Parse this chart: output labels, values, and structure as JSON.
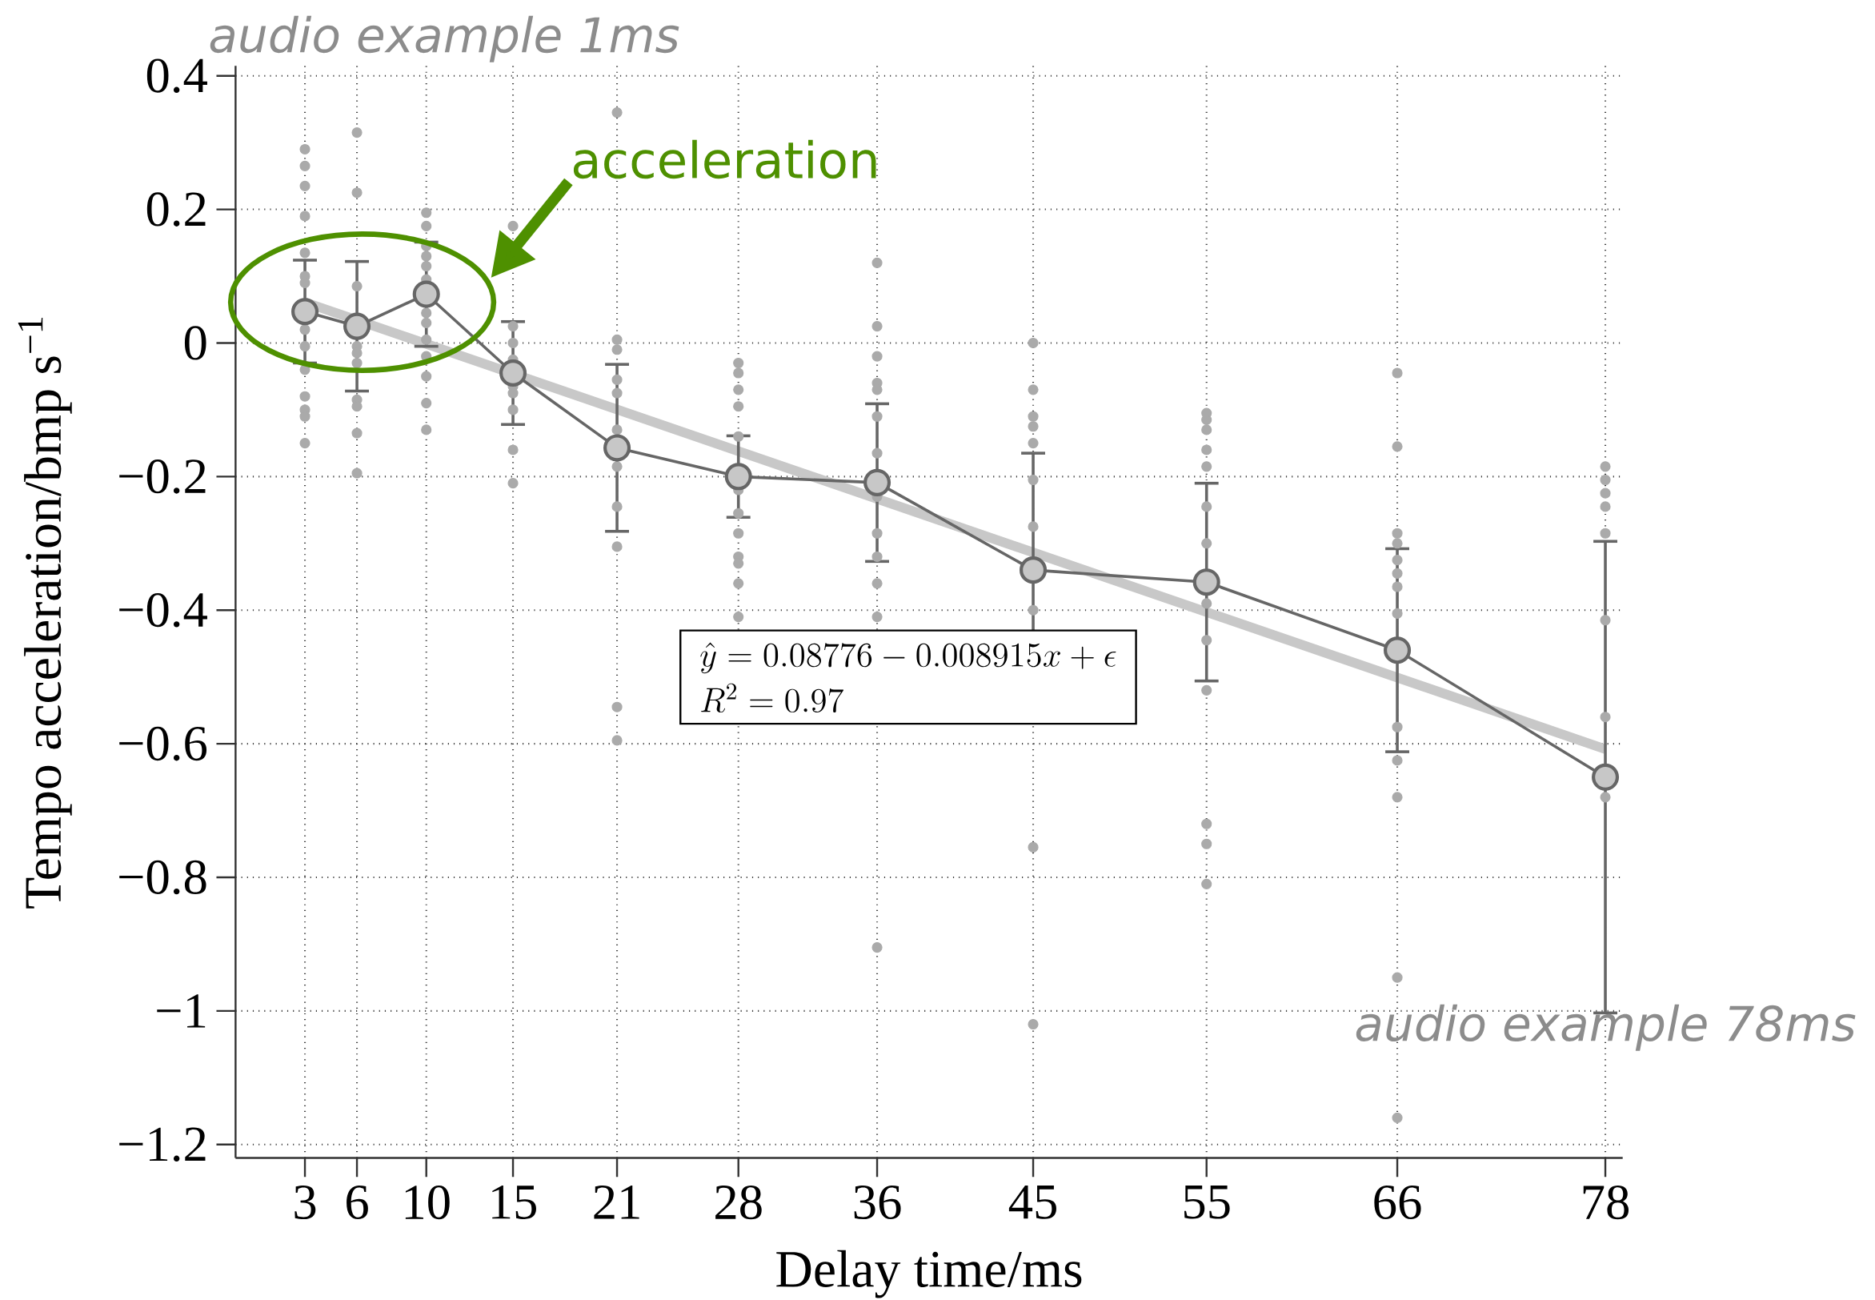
{
  "chart_data": {
    "type": "line",
    "xlabel": "Delay time/ms",
    "ylabel": "Tempo acceleration/bmp s$^{−1}$",
    "xlim": [
      -1,
      79
    ],
    "ylim": [
      -1.22,
      0.415
    ],
    "xticks": [
      3,
      6,
      10,
      15,
      21,
      28,
      36,
      45,
      55,
      66,
      78
    ],
    "yticks": [
      0.4,
      0.2,
      0,
      {
        "value": -0.2,
        "label": "−0.2"
      },
      {
        "value": -0.4,
        "label": "−0.4"
      },
      {
        "value": -0.6,
        "label": "−0.6"
      },
      {
        "value": -0.8,
        "label": "−0.8"
      },
      {
        "value": -1,
        "label": "−1"
      },
      {
        "value": -1.2,
        "label": "−1.2"
      }
    ],
    "grid": true,
    "series": [
      {
        "type": "scatter",
        "marker": "circle",
        "color": "#aaaaaa",
        "x": [
          3,
          3,
          3,
          3,
          3,
          3,
          3,
          3,
          3,
          3,
          3,
          3,
          3,
          3,
          6,
          6,
          6,
          6,
          6,
          6,
          6,
          6,
          6,
          6,
          10,
          10,
          10,
          10,
          10,
          10,
          10,
          10,
          10,
          10,
          10,
          10,
          10,
          15,
          15,
          15,
          15,
          15,
          15,
          15,
          15,
          15,
          21,
          21,
          21,
          21,
          21,
          21,
          21,
          21,
          21,
          21,
          21,
          28,
          28,
          28,
          28,
          28,
          28,
          28,
          28,
          28,
          28,
          28,
          28,
          36,
          36,
          36,
          36,
          36,
          36,
          36,
          36,
          36,
          36,
          36,
          36,
          36,
          45,
          45,
          45,
          45,
          45,
          45,
          45,
          45,
          45,
          45,
          55,
          55,
          55,
          55,
          55,
          55,
          55,
          55,
          55,
          55,
          55,
          55,
          55,
          66,
          66,
          66,
          66,
          66,
          66,
          66,
          66,
          66,
          66,
          66,
          66,
          66,
          78,
          78,
          78,
          78,
          78,
          78,
          78,
          78
        ],
        "values": [
          0.29,
          0.265,
          0.235,
          0.19,
          0.135,
          0.1,
          0.09,
          0.02,
          -0.005,
          -0.04,
          -0.08,
          -0.1,
          -0.11,
          -0.15,
          0.315,
          0.225,
          0.085,
          -0.005,
          -0.015,
          -0.03,
          -0.085,
          -0.095,
          -0.135,
          -0.195,
          0.195,
          0.175,
          0.145,
          0.13,
          0.115,
          0.095,
          0.045,
          0.03,
          0.005,
          -0.02,
          -0.05,
          -0.09,
          -0.13,
          0.175,
          0.025,
          0,
          -0.025,
          -0.065,
          -0.075,
          -0.1,
          -0.16,
          -0.21,
          0.345,
          0.005,
          -0.01,
          -0.055,
          -0.075,
          -0.13,
          -0.185,
          -0.245,
          -0.305,
          -0.545,
          -0.595,
          -0.03,
          -0.045,
          -0.07,
          -0.095,
          -0.14,
          -0.22,
          -0.255,
          -0.285,
          -0.32,
          -0.33,
          -0.36,
          -0.41,
          0.12,
          0.025,
          -0.02,
          -0.06,
          -0.07,
          -0.11,
          -0.165,
          -0.23,
          -0.285,
          -0.32,
          -0.36,
          -0.41,
          -0.905,
          0,
          -0.07,
          -0.11,
          -0.125,
          -0.15,
          -0.205,
          -0.275,
          -0.4,
          -0.755,
          -1.02,
          -0.105,
          -0.115,
          -0.13,
          -0.16,
          -0.185,
          -0.245,
          -0.3,
          -0.39,
          -0.445,
          -0.52,
          -0.72,
          -0.75,
          -0.81,
          -0.045,
          -0.155,
          -0.285,
          -0.3,
          -0.325,
          -0.345,
          -0.365,
          -0.405,
          -0.575,
          -0.625,
          -0.68,
          -0.95,
          -1.16,
          -0.185,
          -0.205,
          -0.225,
          -0.245,
          -0.285,
          -0.415,
          -0.56,
          -0.68
        ]
      },
      {
        "type": "line",
        "marker": "none",
        "color": "#c8c8c8",
        "x": [
          3,
          78
        ],
        "values": [
          0.061,
          -0.608
        ]
      },
      {
        "type": "line",
        "marker": "circle",
        "color": "#666666",
        "x": [
          3,
          6,
          10,
          15,
          21,
          28,
          36,
          45,
          55,
          66,
          78
        ],
        "values": [
          0.047,
          0.025,
          0.073,
          -0.045,
          -0.157,
          -0.2,
          -0.209,
          -0.34,
          -0.358,
          -0.46,
          -0.65
        ],
        "errors": [
          0.077,
          0.097,
          0.078,
          0.077,
          0.125,
          0.061,
          0.118,
          0.175,
          0.148,
          0.152,
          0.353
        ]
      }
    ],
    "annotations": [
      "audio example 1ms",
      "audio example 78ms",
      "acceleration",
      "\\hat{y} = 0.08776 - 0.008915x + \\epsilon",
      "R^{2} = 0.97"
    ]
  }
}
